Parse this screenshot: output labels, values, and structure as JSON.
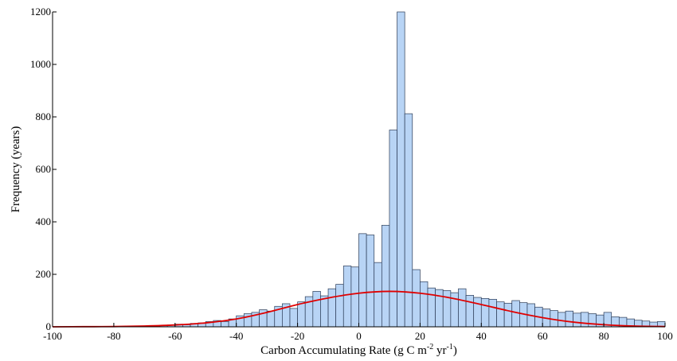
{
  "chart_data": {
    "type": "bar",
    "title": "",
    "xlabel_parts": {
      "main": "Carbon Accumulating Rate (g C m",
      "sup1": "-2",
      "mid": " yr",
      "sup2": "-1",
      "end": ")"
    },
    "ylabel": "Frequency (years)",
    "xlim": [
      -100,
      100
    ],
    "ylim": [
      0,
      1200
    ],
    "x_ticks": [
      -100,
      -80,
      -60,
      -40,
      -20,
      0,
      20,
      40,
      60,
      80,
      100
    ],
    "y_ticks": [
      0,
      200,
      400,
      600,
      800,
      1000,
      1200
    ],
    "bin_width": 2.5,
    "bins_start": [
      -72.5,
      -70,
      -67.5,
      -65,
      -62.5,
      -60,
      -57.5,
      -55,
      -52.5,
      -50,
      -47.5,
      -45,
      -42.5,
      -40,
      -37.5,
      -35,
      -32.5,
      -30,
      -27.5,
      -25,
      -22.5,
      -20,
      -17.5,
      -15,
      -12.5,
      -10,
      -7.5,
      -5,
      -2.5,
      0,
      2.5,
      5,
      7.5,
      10,
      12.5,
      15,
      17.5,
      20,
      22.5,
      25,
      27.5,
      30,
      32.5,
      35,
      37.5,
      40,
      42.5,
      45,
      47.5,
      50,
      52.5,
      55,
      57.5,
      60,
      62.5,
      65,
      67.5,
      70,
      72.5,
      75,
      77.5,
      80,
      82.5,
      85,
      87.5,
      90,
      92.5,
      95,
      97.5
    ],
    "values": [
      2,
      3,
      4,
      5,
      7,
      10,
      8,
      13,
      15,
      20,
      24,
      20,
      30,
      42,
      50,
      55,
      65,
      60,
      78,
      88,
      70,
      95,
      115,
      135,
      118,
      145,
      162,
      232,
      228,
      355,
      350,
      245,
      387,
      750,
      1200,
      812,
      218,
      172,
      148,
      142,
      138,
      130,
      145,
      120,
      112,
      108,
      105,
      95,
      90,
      100,
      92,
      88,
      75,
      68,
      62,
      55,
      60,
      52,
      55,
      50,
      45,
      55,
      38,
      36,
      30,
      25,
      22,
      18,
      20
    ],
    "series": [
      {
        "name": "",
        "type": "line",
        "color": "#e00000",
        "x": [
          -100,
          -90,
          -80,
          -70,
          -60,
          -50,
          -40,
          -30,
          -20,
          -10,
          0,
          10,
          20,
          30,
          40,
          50,
          60,
          70,
          80,
          90,
          100
        ],
        "y": [
          0,
          0.5,
          1,
          3,
          7,
          15,
          30,
          55,
          85,
          110,
          128,
          135,
          128,
          110,
          85,
          58,
          35,
          18,
          8,
          3,
          1
        ]
      }
    ],
    "colors": {
      "bar_fill": "#b8d4f5",
      "bar_stroke": "#2a3a55",
      "curve": "#e00000"
    },
    "grid": false,
    "legend": "none"
  }
}
